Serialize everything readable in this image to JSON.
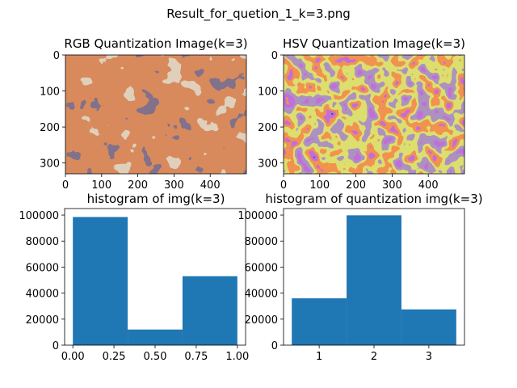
{
  "figure": {
    "suptitle": "Result_for_quetion_1_k=3.png"
  },
  "chart_data": [
    {
      "type": "image",
      "title": "RGB  Quantization Image(k=3)",
      "xlim": [
        0,
        500
      ],
      "ylim": [
        330,
        0
      ],
      "xticks": [
        0,
        100,
        200,
        300,
        400
      ],
      "yticks": [
        0,
        100,
        200,
        300
      ],
      "palette": [
        "#3a2a41",
        "#b0411b",
        "#bea07f"
      ]
    },
    {
      "type": "image",
      "title": "HSV Quantization Image(k=3)",
      "xlim": [
        0,
        500
      ],
      "ylim": [
        330,
        0
      ],
      "xticks": [
        0,
        100,
        200,
        300,
        400
      ],
      "yticks": [
        0,
        100,
        200,
        300
      ],
      "palette": [
        "#14101a",
        "#8a2ab2",
        "#e24a14",
        "#b8ba2a",
        "#6a4a88"
      ]
    },
    {
      "type": "bar",
      "title": "histogram of img(k=3)",
      "bin_edges": [
        0.0,
        0.3333,
        0.6667,
        1.0
      ],
      "values": [
        98500,
        12000,
        53000
      ],
      "xlim": [
        -0.05,
        1.05
      ],
      "ylim": [
        0,
        105000
      ],
      "xticks": [
        "0.00",
        "0.25",
        "0.50",
        "0.75",
        "1.00"
      ],
      "xtick_values": [
        0.0,
        0.25,
        0.5,
        0.75,
        1.0
      ],
      "yticks": [
        "0",
        "20000",
        "40000",
        "60000",
        "80000",
        "100000"
      ],
      "ytick_values": [
        0,
        20000,
        40000,
        60000,
        80000,
        100000
      ],
      "color": "#1f77b4"
    },
    {
      "type": "bar",
      "title": "histogram of quantization img(k=3)",
      "bin_edges": [
        0.5,
        1.5,
        2.5,
        3.5
      ],
      "values": [
        36000,
        99800,
        27500
      ],
      "xlim": [
        0.35,
        3.65
      ],
      "ylim": [
        0,
        105000
      ],
      "xticks": [
        "1",
        "2",
        "3"
      ],
      "xtick_values": [
        1,
        2,
        3
      ],
      "yticks": [
        "0",
        "20000",
        "40000",
        "60000",
        "80000",
        "100000"
      ],
      "ytick_values": [
        0,
        20000,
        40000,
        60000,
        80000,
        100000
      ],
      "color": "#1f77b4"
    }
  ]
}
